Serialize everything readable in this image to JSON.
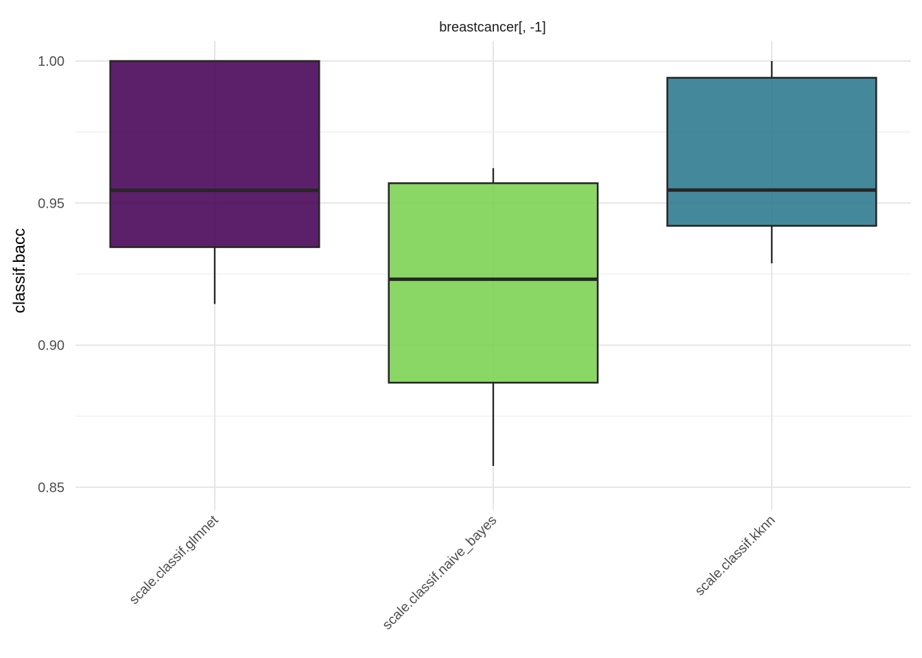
{
  "chart_data": {
    "type": "boxplot",
    "title": "breastcancer[, -1]",
    "xlabel": "",
    "ylabel": "classif.bacc",
    "ylim": [
      0.842,
      1.007
    ],
    "y_ticks": [
      0.85,
      0.9,
      0.95,
      1.0
    ],
    "y_tick_labels": [
      "0.85",
      "0.90",
      "0.95",
      "1.00"
    ],
    "y_minor_ticks": [
      0.875,
      0.925,
      0.975
    ],
    "grid": true,
    "legend": "none",
    "categories": [
      "scale.classif.glmnet",
      "scale.classif.naive_bayes",
      "scale.classif.kknn"
    ],
    "boxes": [
      {
        "category": "scale.classif.glmnet",
        "min": 0.9145,
        "q1": 0.9345,
        "median": 0.9545,
        "q3": 1.0,
        "max": 1.0,
        "color": "#440154"
      },
      {
        "category": "scale.classif.naive_bayes",
        "min": 0.8575,
        "q1": 0.8868,
        "median": 0.9232,
        "q3": 0.957,
        "max": 0.9623,
        "color": "#7AD151"
      },
      {
        "category": "scale.classif.kknn",
        "min": 0.9288,
        "q1": 0.942,
        "median": 0.9546,
        "q3": 0.9941,
        "max": 1.0,
        "color": "#2A788E"
      }
    ]
  }
}
